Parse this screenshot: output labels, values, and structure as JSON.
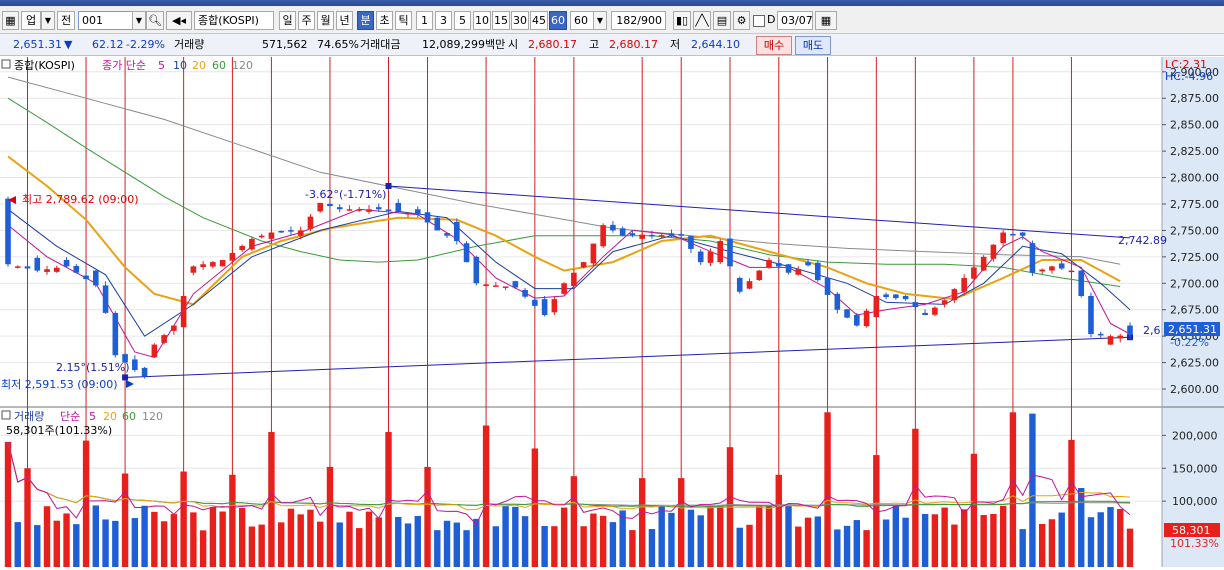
{
  "toolbar": {
    "market_label": "업",
    "prev_label": "전",
    "code_value": "001",
    "name_value": "종합(KOSPI)",
    "periods": [
      "일",
      "주",
      "월",
      "년",
      "분",
      "초",
      "틱"
    ],
    "active_period": "분",
    "intervals": [
      "1",
      "3",
      "5",
      "10",
      "15",
      "30",
      "45",
      "60"
    ],
    "active_interval": "60",
    "interval_select_value": "60",
    "bar_count": "182/900",
    "d_label": "D",
    "date_value": "03/07"
  },
  "infobar": {
    "price": "2,651.31",
    "change": "62.12",
    "change_pct": "-2.29%",
    "volume_label": "거래량",
    "volume": "571,562",
    "volume_ratio": "74.65%",
    "amount_label": "거래대금",
    "amount": "12,089,299백만",
    "open_label": "시",
    "open": "2,680.17",
    "high_label": "고",
    "high": "2,680.17",
    "low_label": "저",
    "low": "2,644.10",
    "buy_label": "매수",
    "sell_label": "매도"
  },
  "price_panel": {
    "name": "종합(KOSPI)",
    "ma_legend_prefix": "종가 단순",
    "ma_periods": [
      "5",
      "10",
      "20",
      "60",
      "120"
    ],
    "lc_label": "LC:2.31",
    "hc_label": "HC:-4.96",
    "high_annotation": "최고 2,789.62 (09:00)",
    "low_annotation": "최저 2,591.53 (09:00)",
    "trend_top_label": "-3.62°(-1.71%)",
    "trend_bottom_label": "2.15°(1.51%)",
    "trend_top_value": "2,742.89",
    "current_label_short": "2,6",
    "current_price_tag": "2,651.31",
    "current_change_tag": "-0.22%"
  },
  "volume_panel": {
    "name": "거래량",
    "ma_legend_prefix": "단순",
    "ma_periods": [
      "5",
      "20",
      "60",
      "120"
    ],
    "info": "58,301주(101.33%)",
    "current_tag": "58,301",
    "current_pct_tag": "101.33%"
  },
  "colors": {
    "up": "#e8201c",
    "down": "#1f5fd6",
    "ma5": "#c0139a",
    "ma10": "#1a3fa0",
    "ma20": "#e8a312",
    "ma60": "#3a9a3a",
    "ma120": "#8a8a8a",
    "trendline": "#2020b0",
    "vline": "#d42020"
  },
  "chart_data": [
    {
      "type": "candlestick",
      "title": "종합(KOSPI)",
      "y_ticks": [
        2600,
        2625,
        2650,
        2675,
        2700,
        2725,
        2750,
        2775,
        2800,
        2825,
        2850,
        2875,
        2900
      ],
      "y_range": [
        2583,
        2914
      ],
      "bar_count": 116,
      "price_anchors": [
        [
          0,
          2780,
          2718
        ],
        [
          3,
          2724,
          2712
        ],
        [
          6,
          2722,
          2716
        ],
        [
          9,
          2712,
          2698
        ],
        [
          10,
          2698,
          2672
        ],
        [
          11,
          2672,
          2632
        ],
        [
          13,
          2628,
          2618
        ],
        [
          14,
          2620,
          2612
        ],
        [
          15,
          2630,
          2642
        ],
        [
          17,
          2655,
          2660
        ],
        [
          19,
          2710,
          2716
        ],
        [
          22,
          2716,
          2722
        ],
        [
          25,
          2732,
          2742
        ],
        [
          27,
          2742,
          2748
        ],
        [
          30,
          2745,
          2750
        ],
        [
          32,
          2768,
          2776
        ],
        [
          34,
          2772,
          2770
        ],
        [
          38,
          2772,
          2770
        ],
        [
          40,
          2776,
          2768
        ],
        [
          42,
          2770,
          2765
        ],
        [
          44,
          2762,
          2750
        ],
        [
          46,
          2758,
          2740
        ],
        [
          48,
          2725,
          2700
        ],
        [
          52,
          2702,
          2696
        ],
        [
          55,
          2685,
          2670
        ],
        [
          57,
          2690,
          2700
        ],
        [
          59,
          2715,
          2720
        ],
        [
          61,
          2735,
          2755
        ],
        [
          63,
          2752,
          2745
        ],
        [
          65,
          2742,
          2746
        ],
        [
          69,
          2745,
          2745
        ],
        [
          71,
          2730,
          2720
        ],
        [
          73,
          2720,
          2740
        ],
        [
          75,
          2705,
          2692
        ],
        [
          78,
          2715,
          2722
        ],
        [
          80,
          2718,
          2710
        ],
        [
          82,
          2720,
          2717
        ],
        [
          85,
          2690,
          2675
        ],
        [
          87,
          2670,
          2660
        ],
        [
          89,
          2668,
          2688
        ],
        [
          92,
          2688,
          2685
        ],
        [
          94,
          2672,
          2670
        ],
        [
          96,
          2680,
          2684
        ],
        [
          98,
          2692,
          2705
        ],
        [
          100,
          2712,
          2725
        ],
        [
          102,
          2738,
          2748
        ],
        [
          104,
          2748,
          2745
        ],
        [
          105,
          2738,
          2710
        ],
        [
          107,
          2712,
          2716
        ],
        [
          109,
          2712,
          2712
        ],
        [
          110,
          2712,
          2688
        ],
        [
          111,
          2688,
          2652
        ],
        [
          113,
          2642,
          2650
        ],
        [
          115,
          2660,
          2651
        ]
      ],
      "ma5": [
        [
          0,
          2755
        ],
        [
          4,
          2725
        ],
        [
          9,
          2700
        ],
        [
          13,
          2635
        ],
        [
          15,
          2630
        ],
        [
          19,
          2690
        ],
        [
          25,
          2735
        ],
        [
          30,
          2748
        ],
        [
          36,
          2770
        ],
        [
          42,
          2765
        ],
        [
          46,
          2742
        ],
        [
          50,
          2705
        ],
        [
          54,
          2686
        ],
        [
          57,
          2688
        ],
        [
          61,
          2725
        ],
        [
          64,
          2750
        ],
        [
          68,
          2746
        ],
        [
          72,
          2730
        ],
        [
          76,
          2715
        ],
        [
          80,
          2715
        ],
        [
          84,
          2695
        ],
        [
          87,
          2670
        ],
        [
          90,
          2675
        ],
        [
          94,
          2680
        ],
        [
          98,
          2692
        ],
        [
          102,
          2735
        ],
        [
          104,
          2744
        ],
        [
          106,
          2730
        ],
        [
          110,
          2715
        ],
        [
          113,
          2662
        ],
        [
          115,
          2652
        ]
      ],
      "ma10": [
        [
          0,
          2770
        ],
        [
          5,
          2735
        ],
        [
          10,
          2708
        ],
        [
          14,
          2650
        ],
        [
          19,
          2680
        ],
        [
          25,
          2725
        ],
        [
          32,
          2750
        ],
        [
          40,
          2768
        ],
        [
          45,
          2762
        ],
        [
          50,
          2720
        ],
        [
          54,
          2695
        ],
        [
          58,
          2695
        ],
        [
          62,
          2730
        ],
        [
          68,
          2745
        ],
        [
          74,
          2730
        ],
        [
          80,
          2716
        ],
        [
          86,
          2700
        ],
        [
          90,
          2682
        ],
        [
          96,
          2680
        ],
        [
          100,
          2700
        ],
        [
          104,
          2735
        ],
        [
          108,
          2728
        ],
        [
          112,
          2700
        ],
        [
          115,
          2675
        ]
      ],
      "ma20": [
        [
          0,
          2820
        ],
        [
          4,
          2792
        ],
        [
          8,
          2760
        ],
        [
          12,
          2715
        ],
        [
          15,
          2690
        ],
        [
          19,
          2680
        ],
        [
          24,
          2725
        ],
        [
          28,
          2740
        ],
        [
          33,
          2752
        ],
        [
          40,
          2762
        ],
        [
          46,
          2760
        ],
        [
          50,
          2745
        ],
        [
          54,
          2725
        ],
        [
          57,
          2712
        ],
        [
          62,
          2720
        ],
        [
          67,
          2740
        ],
        [
          72,
          2745
        ],
        [
          78,
          2730
        ],
        [
          84,
          2715
        ],
        [
          88,
          2700
        ],
        [
          92,
          2690
        ],
        [
          97,
          2685
        ],
        [
          102,
          2705
        ],
        [
          106,
          2722
        ],
        [
          110,
          2722
        ],
        [
          114,
          2702
        ]
      ],
      "ma60": [
        [
          0,
          2875
        ],
        [
          4,
          2852
        ],
        [
          8,
          2828
        ],
        [
          12,
          2805
        ],
        [
          16,
          2782
        ],
        [
          20,
          2762
        ],
        [
          26,
          2740
        ],
        [
          30,
          2730
        ],
        [
          34,
          2722
        ],
        [
          38,
          2720
        ],
        [
          42,
          2722
        ],
        [
          48,
          2735
        ],
        [
          54,
          2745
        ],
        [
          60,
          2745
        ],
        [
          66,
          2745
        ],
        [
          72,
          2740
        ],
        [
          78,
          2727
        ],
        [
          84,
          2720
        ],
        [
          90,
          2718
        ],
        [
          96,
          2718
        ],
        [
          102,
          2715
        ],
        [
          108,
          2705
        ],
        [
          114,
          2697
        ]
      ],
      "ma120": [
        [
          0,
          2895
        ],
        [
          8,
          2875
        ],
        [
          16,
          2855
        ],
        [
          24,
          2830
        ],
        [
          32,
          2805
        ],
        [
          40,
          2790
        ],
        [
          48,
          2775
        ],
        [
          56,
          2762
        ],
        [
          62,
          2752
        ],
        [
          70,
          2745
        ],
        [
          78,
          2738
        ],
        [
          86,
          2733
        ],
        [
          94,
          2730
        ],
        [
          102,
          2727
        ],
        [
          110,
          2725
        ],
        [
          114,
          2718
        ]
      ],
      "trend_top": [
        [
          39,
          2792
        ],
        [
          115,
          2742.89
        ]
      ],
      "trend_bottom": [
        [
          12,
          2611
        ],
        [
          115,
          2649
        ]
      ],
      "vertical_line_bars": [
        2,
        8,
        12,
        18,
        23,
        27,
        33,
        39,
        43,
        49,
        54,
        58,
        65,
        69,
        74,
        79,
        84,
        89,
        93,
        99,
        103,
        109
      ]
    },
    {
      "type": "bar",
      "title": "거래량",
      "y_ticks": [
        100000,
        150000,
        200000
      ],
      "y_range": [
        0,
        240000
      ],
      "values": [
        {
          "i": 0,
          "v": 190000,
          "up": true
        },
        {
          "i": 2,
          "v": 150000,
          "up": true
        },
        {
          "i": 8,
          "v": 192000,
          "up": true
        },
        {
          "i": 12,
          "v": 142000,
          "up": true
        },
        {
          "i": 18,
          "v": 145000,
          "up": true
        },
        {
          "i": 23,
          "v": 140000,
          "up": true
        },
        {
          "i": 27,
          "v": 205000,
          "up": true
        },
        {
          "i": 33,
          "v": 152000,
          "up": true
        },
        {
          "i": 39,
          "v": 205000,
          "up": true
        },
        {
          "i": 43,
          "v": 152000,
          "up": true
        },
        {
          "i": 49,
          "v": 215000,
          "up": true
        },
        {
          "i": 54,
          "v": 180000,
          "up": true
        },
        {
          "i": 58,
          "v": 138000,
          "up": true
        },
        {
          "i": 65,
          "v": 135000,
          "up": true
        },
        {
          "i": 69,
          "v": 135000,
          "up": true
        },
        {
          "i": 74,
          "v": 182000,
          "up": true
        },
        {
          "i": 79,
          "v": 140000,
          "up": true
        },
        {
          "i": 84,
          "v": 235000,
          "up": true
        },
        {
          "i": 89,
          "v": 170000,
          "up": true
        },
        {
          "i": 93,
          "v": 210000,
          "up": true
        },
        {
          "i": 99,
          "v": 172000,
          "up": true
        },
        {
          "i": 103,
          "v": 235000,
          "up": true
        },
        {
          "i": 105,
          "v": 233000,
          "up": false
        },
        {
          "i": 109,
          "v": 193000,
          "up": true
        },
        {
          "i": 110,
          "v": 120000,
          "up": false
        }
      ],
      "base_volume_range": [
        55000,
        95000
      ],
      "current_value": 58301
    }
  ]
}
